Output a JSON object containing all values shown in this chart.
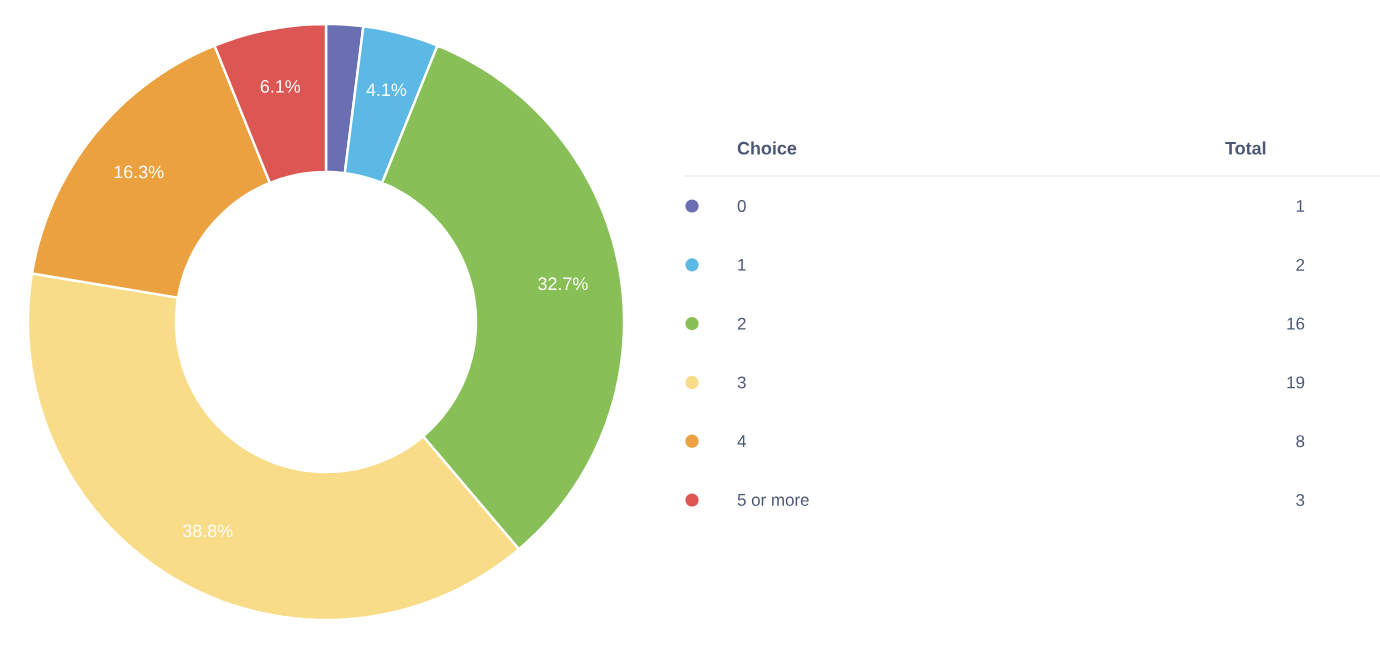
{
  "chart_data": {
    "type": "donut",
    "categories": [
      "0",
      "1",
      "2",
      "3",
      "4",
      "5 or more"
    ],
    "values": [
      2.0,
      4.1,
      32.7,
      38.8,
      16.3,
      6.1
    ],
    "colors": [
      "#6a6fb4",
      "#5cb8e4",
      "#88bf56",
      "#f8dc88",
      "#eba13f",
      "#dc5753"
    ],
    "value_labels": [
      null,
      "4.1%",
      "32.7%",
      "38.8%",
      "16.3%",
      "6.1%"
    ],
    "legend": "right",
    "legend_title": "Choice",
    "annotations": [
      "Total",
      "1",
      "2",
      "16",
      "19",
      "8",
      "3"
    ]
  }
}
